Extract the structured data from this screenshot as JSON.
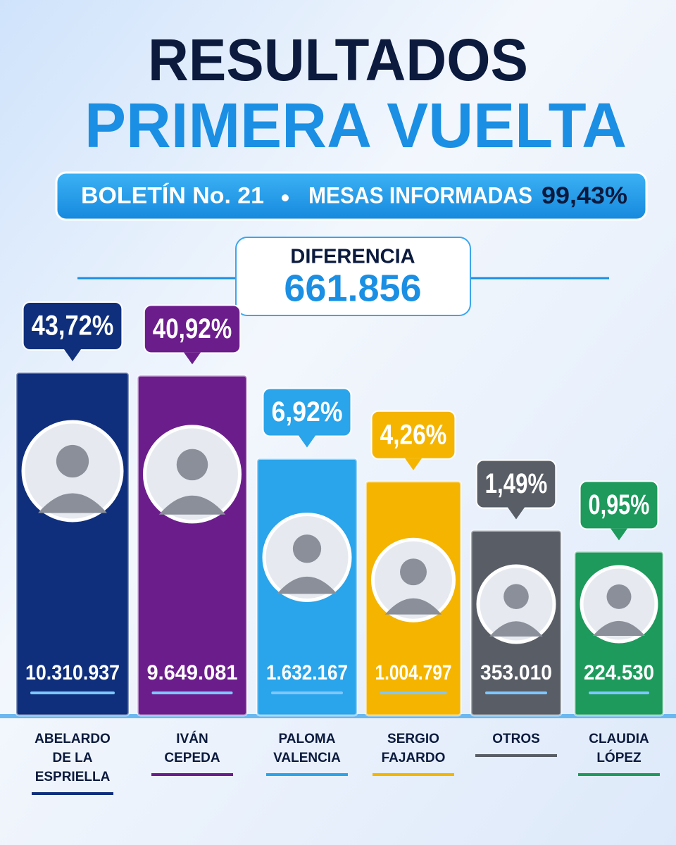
{
  "chart_data": {
    "type": "bar",
    "title": "RESULTADOS",
    "subtitle": "PRIMERA VUELTA",
    "bulletin": "BOLETÍN No. 21",
    "reported_label": "MESAS INFORMADAS",
    "reported_value": "99,43%",
    "difference_label": "DIFERENCIA",
    "difference_value": "661.856",
    "categories": [
      "ABELARDO DE LA ESPRIELLA",
      "IVÁN CEPEDA",
      "PALOMA VALENCIA",
      "SERGIO FAJARDO",
      "OTROS",
      "CLAUDIA LÓPEZ"
    ],
    "values": [
      43.72,
      40.92,
      6.92,
      4.26,
      1.49,
      0.95
    ],
    "value_labels": [
      "43,72%",
      "40,92%",
      "6,92%",
      "4,26%",
      "1,49%",
      "0,95%"
    ],
    "votes": [
      "10.310.937",
      "9.649.081",
      "1.632.167",
      "1.004.797",
      "353.010",
      "224.530"
    ],
    "colors": [
      "#0f2f7c",
      "#6c1d8c",
      "#2aa4ea",
      "#f4b400",
      "#585d66",
      "#1d9a5c"
    ],
    "log_scale": true
  }
}
